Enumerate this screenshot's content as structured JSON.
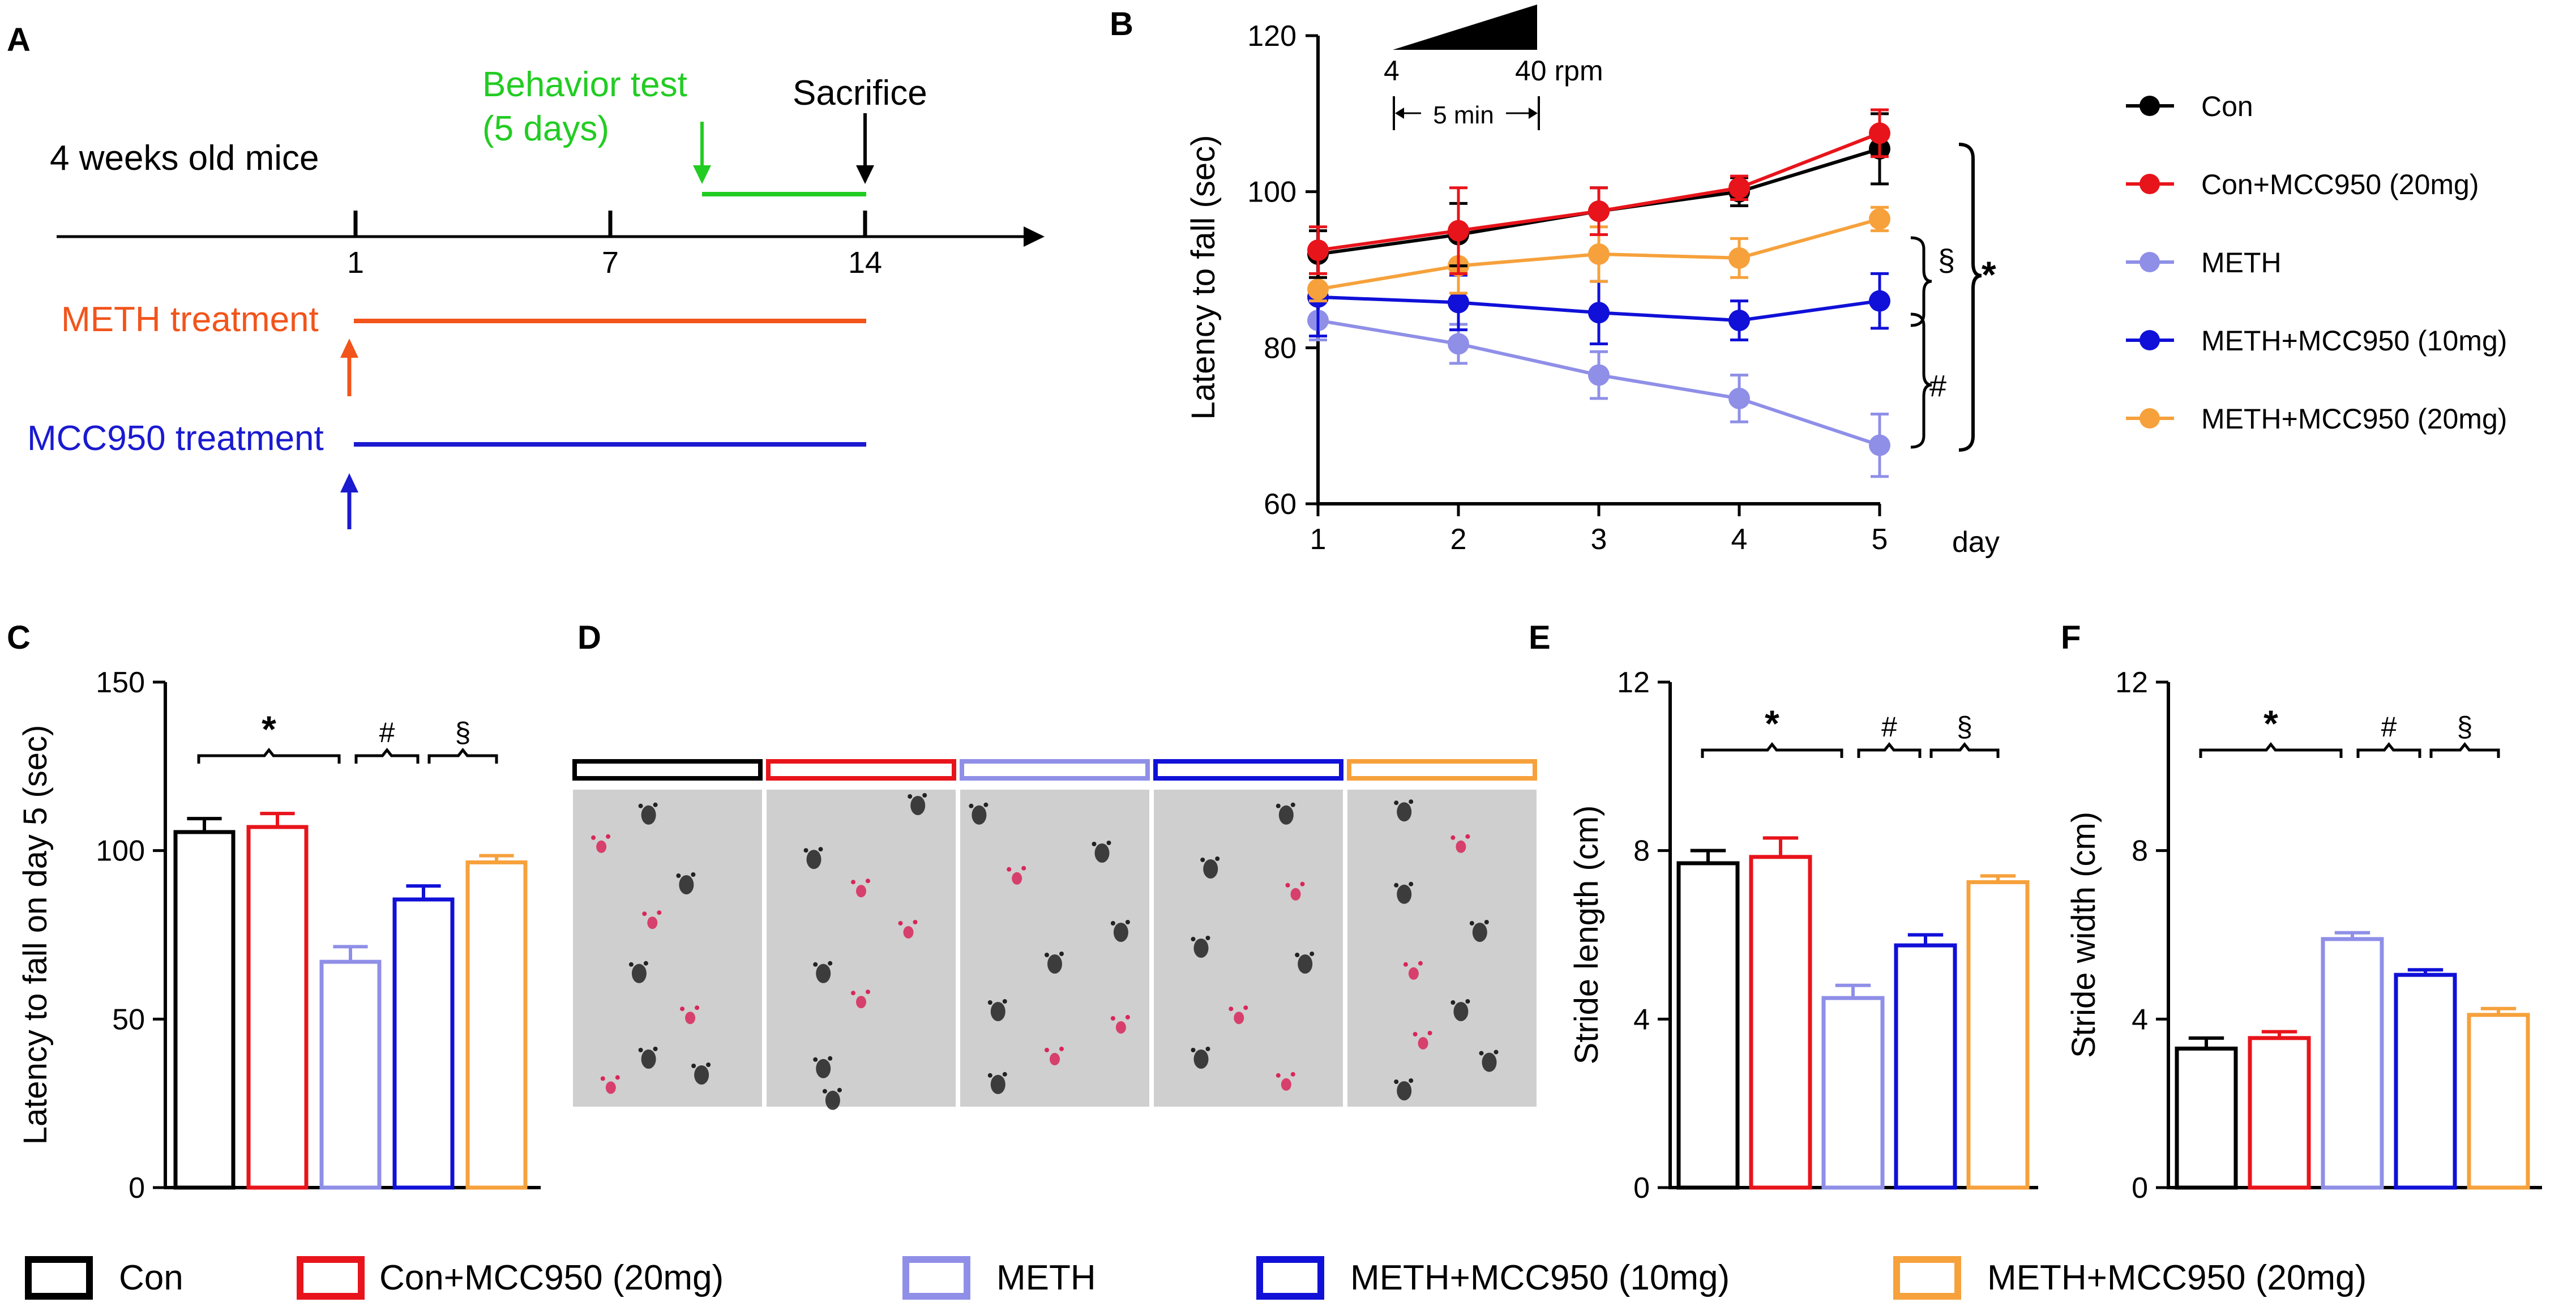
{
  "colors": {
    "con": "#000000",
    "con_mcc20": "#e8141b",
    "meth": "#8f8fe8",
    "meth_mcc10": "#1010d8",
    "meth_mcc20": "#f6a13c",
    "meth_treat": "#f2541b",
    "mcc_treat": "#1a1ad0",
    "behavior": "#22cc22",
    "track_bg": "#cfcfcf"
  },
  "panel_a": {
    "label": "A",
    "mice_text": "4 weeks old mice",
    "behavior_line1": "Behavior test",
    "behavior_line2": "(5 days)",
    "sacrifice": "Sacrifice",
    "ticks": [
      "1",
      "7",
      "14"
    ],
    "meth_treatment": "METH treatment",
    "mcc_treatment": "MCC950 treatment"
  },
  "panel_d": {
    "label": "D",
    "groups": [
      "con",
      "con_mcc20",
      "meth",
      "meth_mcc10",
      "meth_mcc20"
    ]
  },
  "legend_bottom": [
    "Con",
    "Con+MCC950 (20mg)",
    "METH",
    "METH+MCC950 (10mg)",
    "METH+MCC950 (20mg)"
  ],
  "chart_data": [
    {
      "id": "B",
      "label": "B",
      "type": "line",
      "x": [
        1,
        2,
        3,
        4,
        5
      ],
      "xticks": [
        "1",
        "2",
        "3",
        "4",
        "5"
      ],
      "xunit": "day",
      "ylabel": "Latency to fall (sec)",
      "ylim": [
        60,
        120
      ],
      "yticks": [
        "60",
        "80",
        "100",
        "120"
      ],
      "ramp": {
        "start": "4",
        "end": "40 rpm",
        "duration": "5 min"
      },
      "series": [
        {
          "key": "con",
          "name": "Con",
          "values": [
            92,
            94.5,
            97.5,
            100,
            105.5
          ],
          "err": [
            3,
            4,
            3,
            1.8,
            4.5
          ]
        },
        {
          "key": "con_mcc20",
          "name": "Con+MCC950 (20mg)",
          "values": [
            92.5,
            95,
            97.5,
            100.5,
            107.5
          ],
          "err": [
            3,
            5.5,
            3,
            1.5,
            3
          ]
        },
        {
          "key": "meth",
          "name": "METH",
          "values": [
            83.5,
            80.5,
            76.5,
            73.5,
            67.5
          ],
          "err": [
            2.5,
            2.5,
            3,
            3,
            4
          ]
        },
        {
          "key": "meth_mcc10",
          "name": "METH+MCC950 (10mg)",
          "values": [
            86.5,
            85.8,
            84.5,
            83.5,
            86
          ],
          "err": [
            5,
            3.5,
            4,
            2.5,
            3.5
          ]
        },
        {
          "key": "meth_mcc20",
          "name": "METH+MCC950 (20mg)",
          "values": [
            87.5,
            90.5,
            92,
            91.5,
            96.5
          ],
          "err": [
            1.5,
            3.5,
            3.5,
            2.5,
            1.5
          ]
        }
      ],
      "annotations": [
        "§",
        "#",
        "*"
      ]
    },
    {
      "id": "C",
      "label": "C",
      "type": "bar",
      "categories": [
        "Con",
        "Con+MCC950 (20mg)",
        "METH",
        "METH+MCC950 (10mg)",
        "METH+MCC950 (20mg)"
      ],
      "keys": [
        "con",
        "con_mcc20",
        "meth",
        "meth_mcc10",
        "meth_mcc20"
      ],
      "values": [
        105.5,
        107,
        67,
        85.5,
        96.5
      ],
      "err": [
        4,
        4,
        4.5,
        4,
        2
      ],
      "ylabel": "Latency to fall on day 5  (sec)",
      "ylim": [
        0,
        150
      ],
      "yticks": [
        "0",
        "50",
        "100",
        "150"
      ],
      "sig": [
        "*",
        "#",
        "§"
      ]
    },
    {
      "id": "E",
      "label": "E",
      "type": "bar",
      "categories": [
        "Con",
        "Con+MCC950 (20mg)",
        "METH",
        "METH+MCC950 (10mg)",
        "METH+MCC950 (20mg)"
      ],
      "keys": [
        "con",
        "con_mcc20",
        "meth",
        "meth_mcc10",
        "meth_mcc20"
      ],
      "values": [
        7.7,
        7.85,
        4.5,
        5.75,
        7.25
      ],
      "err": [
        0.3,
        0.45,
        0.3,
        0.25,
        0.15
      ],
      "ylabel": "Stride length (cm)",
      "ylim": [
        0,
        12
      ],
      "yticks": [
        "0",
        "4",
        "8",
        "12"
      ],
      "sig": [
        "*",
        "#",
        "§"
      ]
    },
    {
      "id": "F",
      "label": "F",
      "type": "bar",
      "categories": [
        "Con",
        "Con+MCC950 (20mg)",
        "METH",
        "METH+MCC950 (10mg)",
        "METH+MCC950 (20mg)"
      ],
      "keys": [
        "con",
        "con_mcc20",
        "meth",
        "meth_mcc10",
        "meth_mcc20"
      ],
      "values": [
        3.3,
        3.55,
        5.9,
        5.05,
        4.1
      ],
      "err": [
        0.25,
        0.15,
        0.15,
        0.12,
        0.15
      ],
      "ylabel": "Stride width (cm)",
      "ylim": [
        0,
        12
      ],
      "yticks": [
        "0",
        "4",
        "8",
        "12"
      ],
      "sig": [
        "*",
        "#",
        "§"
      ]
    }
  ]
}
